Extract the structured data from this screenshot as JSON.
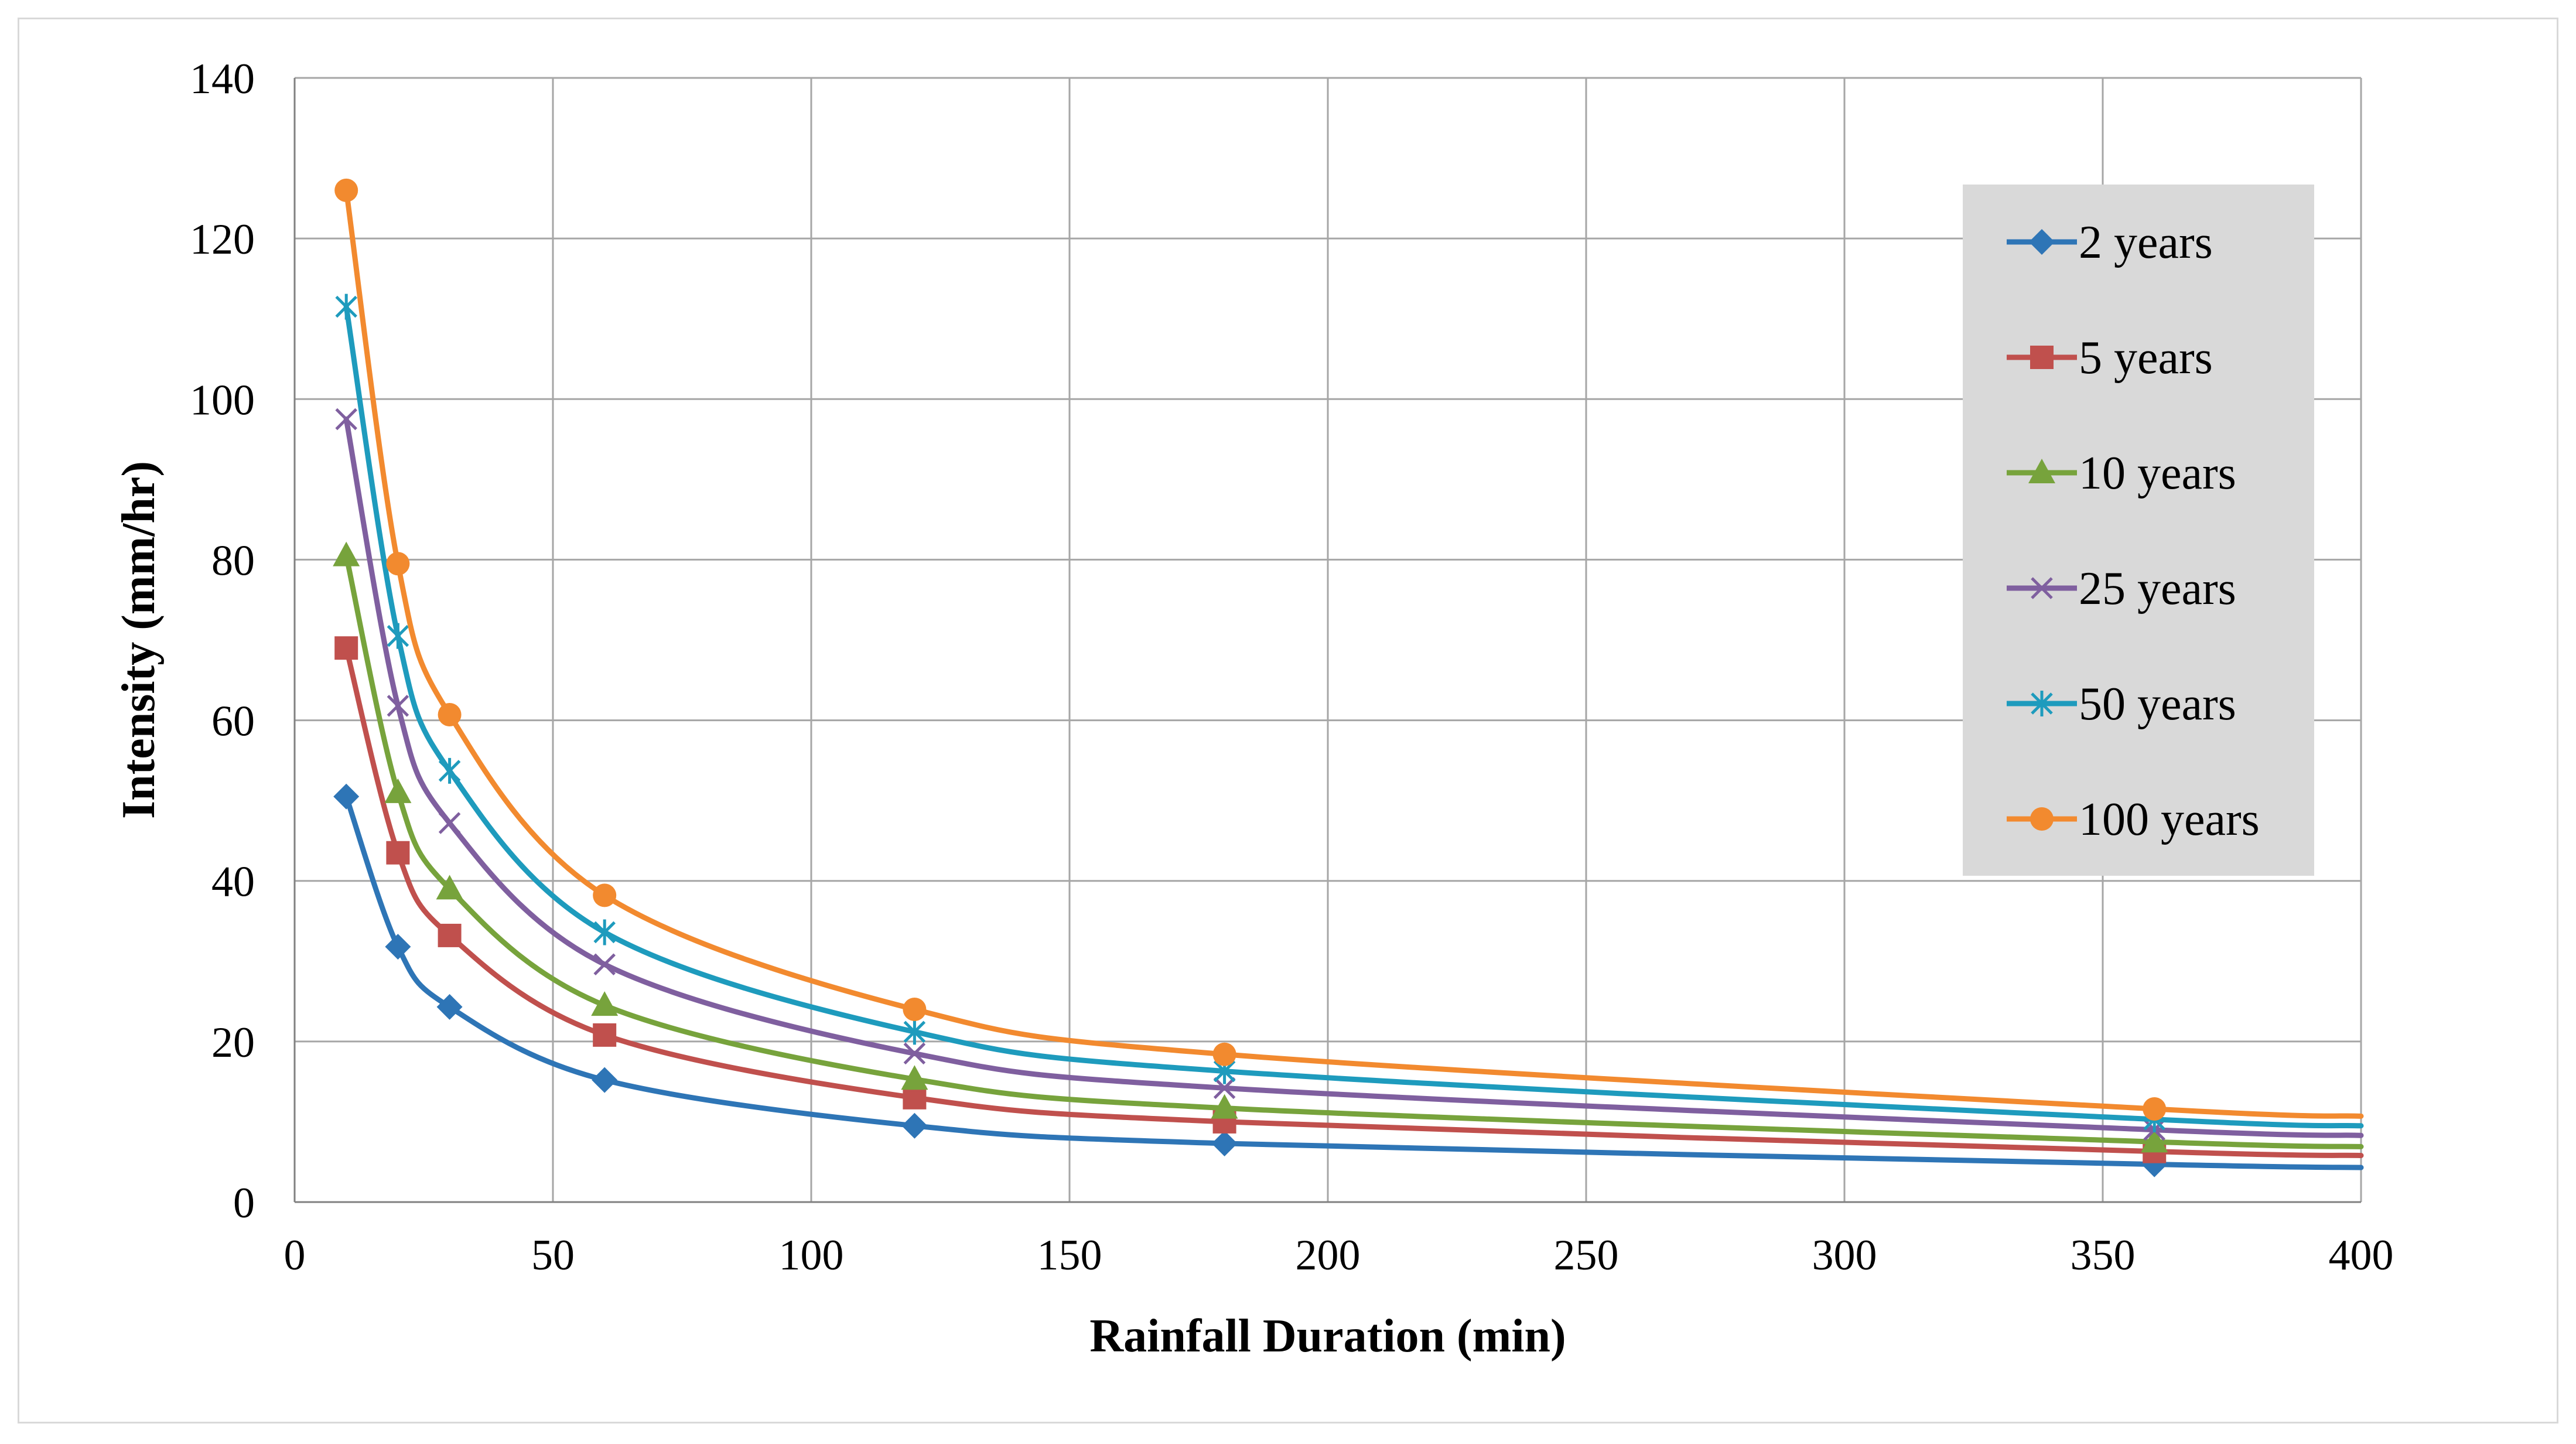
{
  "chart_data": {
    "type": "line",
    "title": "",
    "xlabel": "Rainfall Duration (min)",
    "ylabel": "Intensity (mm/hr)",
    "xlim": [
      0,
      400
    ],
    "ylim": [
      0,
      140
    ],
    "xticks": [
      0,
      50,
      100,
      150,
      200,
      250,
      300,
      350,
      400
    ],
    "yticks": [
      0,
      20,
      40,
      60,
      80,
      100,
      120,
      140
    ],
    "grid": true,
    "legend_position": "top-right",
    "x": [
      10,
      20,
      30,
      60,
      120,
      180,
      360
    ],
    "curve_end_x": 400,
    "series": [
      {
        "name": "2 years",
        "color": "#2e75b6",
        "marker": "diamond",
        "values": [
          50.5,
          31.8,
          24.3,
          15.2,
          9.5,
          7.3,
          4.7
        ],
        "end_value": 4.3
      },
      {
        "name": "5 years",
        "color": "#c0504d",
        "marker": "square",
        "values": [
          69.0,
          43.5,
          33.2,
          20.8,
          13.0,
          10.0,
          6.3
        ],
        "end_value": 5.8
      },
      {
        "name": "10 years",
        "color": "#77a33c",
        "marker": "triangle",
        "values": [
          80.5,
          51.0,
          39.0,
          24.5,
          15.3,
          11.7,
          7.5
        ],
        "end_value": 6.9
      },
      {
        "name": "25 years",
        "color": "#7f5f9f",
        "marker": "x",
        "values": [
          97.5,
          61.8,
          47.2,
          29.6,
          18.5,
          14.2,
          9.0
        ],
        "end_value": 8.3
      },
      {
        "name": "50 years",
        "color": "#1e9bbd",
        "marker": "star",
        "values": [
          111.5,
          70.5,
          53.7,
          33.6,
          21.2,
          16.3,
          10.3
        ],
        "end_value": 9.5
      },
      {
        "name": "100 years",
        "color": "#f28a2f",
        "marker": "circle",
        "values": [
          126.0,
          79.5,
          60.7,
          38.2,
          24.0,
          18.4,
          11.6
        ],
        "end_value": 10.7
      }
    ]
  }
}
